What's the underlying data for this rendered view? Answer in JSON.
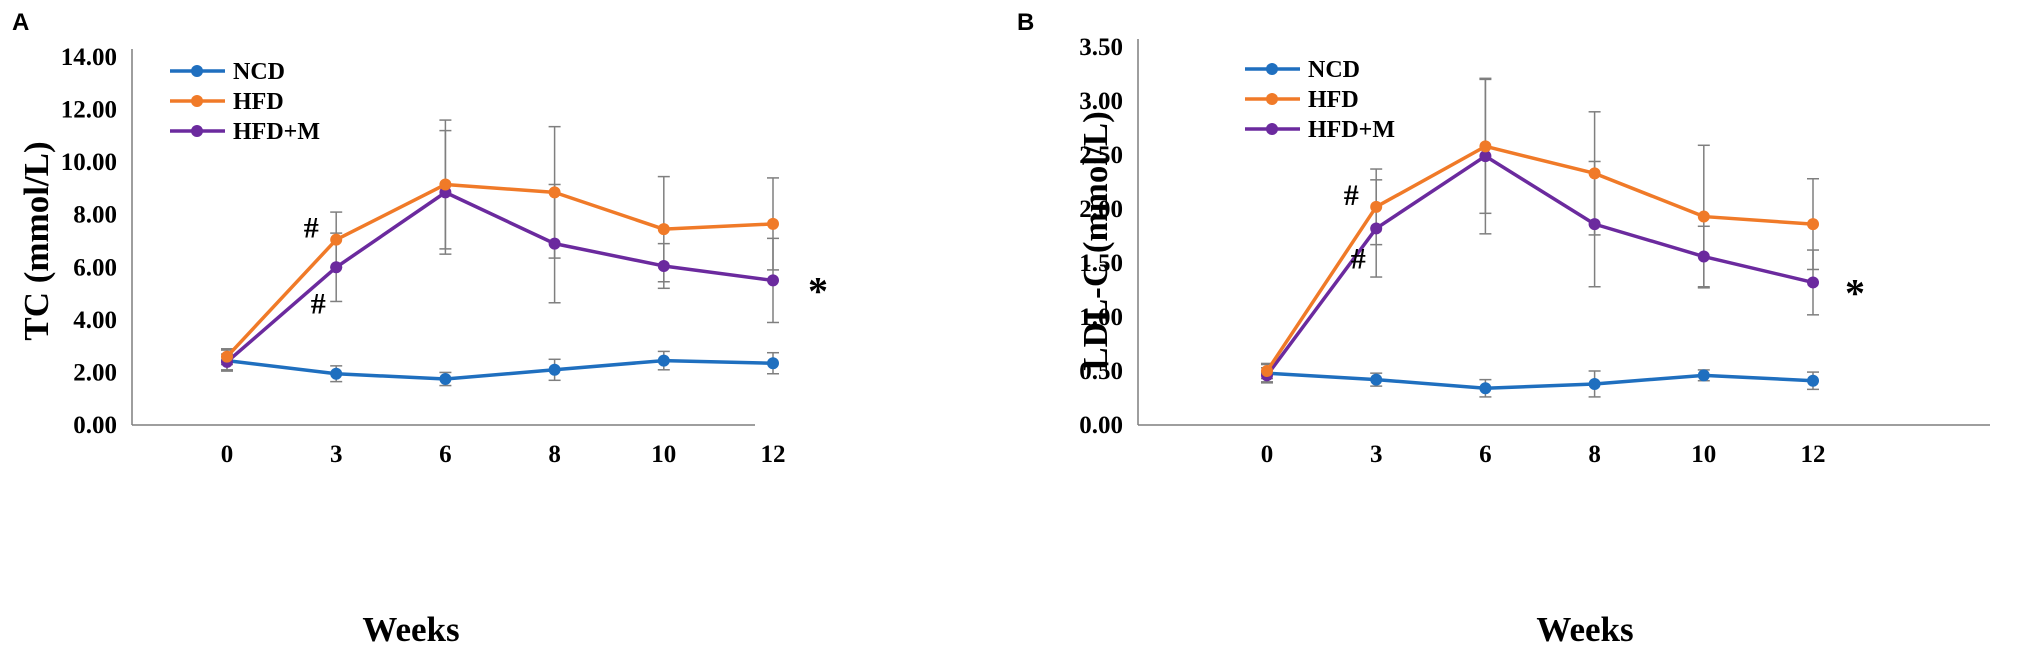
{
  "chart_data": [
    {
      "panel": "A",
      "type": "line",
      "title": "",
      "xlabel": "Weeks",
      "ylabel": "TC (mmol/L)",
      "categories": [
        "0",
        "3",
        "6",
        "8",
        "10",
        "12"
      ],
      "ylim": [
        0,
        14
      ],
      "ytick_labels": [
        "0.00",
        "2.00",
        "4.00",
        "6.00",
        "8.00",
        "10.00",
        "12.00",
        "14.00"
      ],
      "legend": "top-left",
      "grid": false,
      "series": [
        {
          "name": "NCD",
          "color": "#1f6fbf",
          "values": [
            2.45,
            1.95,
            1.75,
            2.1,
            2.45,
            2.35
          ],
          "errors": [
            0.4,
            0.3,
            0.25,
            0.4,
            0.35,
            0.4
          ]
        },
        {
          "name": "HFD",
          "color": "#f07a28",
          "values": [
            2.6,
            7.05,
            9.15,
            8.85,
            7.45,
            7.65
          ],
          "errors": [
            0.3,
            1.05,
            2.45,
            2.5,
            2.0,
            1.75
          ]
        },
        {
          "name": "HFD+M",
          "color": "#6b2a9e",
          "values": [
            2.4,
            6.0,
            8.85,
            6.9,
            6.05,
            5.5
          ],
          "errors": [
            0.3,
            1.3,
            2.35,
            2.25,
            0.85,
            1.6
          ]
        }
      ],
      "annotations": [
        {
          "text": "#",
          "category": "3",
          "series": "HFD"
        },
        {
          "text": "#",
          "category": "3",
          "series": "HFD+M"
        },
        {
          "text": "*",
          "category": "12",
          "series": "HFD+M"
        }
      ]
    },
    {
      "panel": "B",
      "type": "line",
      "title": "",
      "xlabel": "Weeks",
      "ylabel": "LDL-C (mmol/L)",
      "categories": [
        "0",
        "3",
        "6",
        "8",
        "10",
        "12"
      ],
      "ylim": [
        0,
        3.5
      ],
      "ytick_labels": [
        "0.00",
        "0.50",
        "1.00",
        "1.50",
        "2.00",
        "2.50",
        "3.00",
        "3.50"
      ],
      "legend": "top-left",
      "grid": false,
      "series": [
        {
          "name": "NCD",
          "color": "#1f6fbf",
          "values": [
            0.48,
            0.42,
            0.34,
            0.38,
            0.46,
            0.41
          ],
          "errors": [
            0.08,
            0.06,
            0.08,
            0.12,
            0.05,
            0.08
          ]
        },
        {
          "name": "HFD",
          "color": "#f07a28",
          "values": [
            0.5,
            2.02,
            2.58,
            2.33,
            1.93,
            1.86
          ],
          "errors": [
            0.07,
            0.35,
            0.62,
            0.57,
            0.66,
            0.42
          ]
        },
        {
          "name": "HFD+M",
          "color": "#6b2a9e",
          "values": [
            0.46,
            1.82,
            2.49,
            1.86,
            1.56,
            1.32
          ],
          "errors": [
            0.07,
            0.45,
            0.72,
            0.58,
            0.28,
            0.3
          ]
        }
      ],
      "annotations": [
        {
          "text": "#",
          "category": "3",
          "series": "HFD"
        },
        {
          "text": "#",
          "category": "3",
          "series": "HFD+M"
        },
        {
          "text": "*",
          "category": "12",
          "series": "HFD+M"
        }
      ]
    }
  ]
}
